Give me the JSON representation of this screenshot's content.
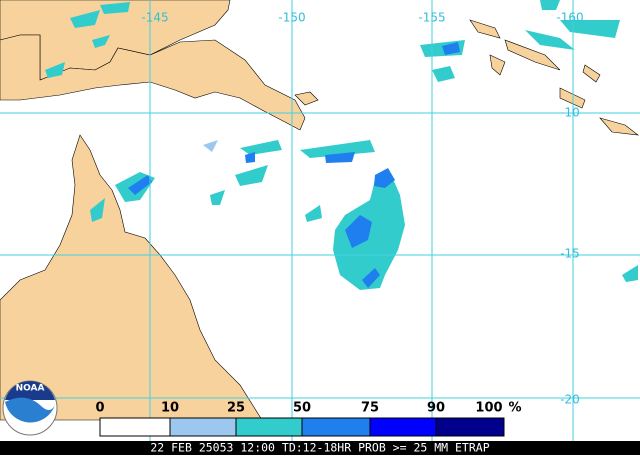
{
  "map": {
    "lon_labels": [
      "-145",
      "-150",
      "-155",
      "-160"
    ],
    "lat_labels": [
      "-10",
      "-15",
      "-20"
    ],
    "logo": "NOAA",
    "legend": {
      "labels": [
        "0",
        "10",
        "25",
        "50",
        "75",
        "90",
        "100"
      ],
      "unit": "%"
    },
    "caption": "22 FEB 25053 12:00 TD:12-18HR PROB >= 25 MM ETRAP"
  }
}
